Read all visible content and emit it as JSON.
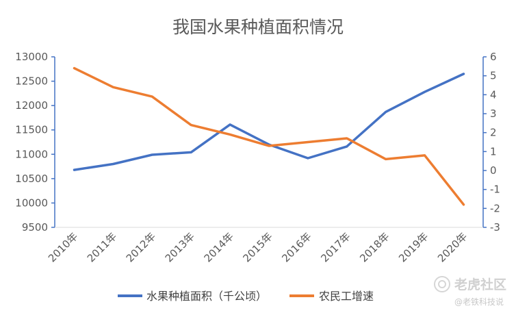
{
  "chart_data": {
    "type": "line",
    "title": "我国水果种植面积情况",
    "categories": [
      "2010年",
      "2011年",
      "2012年",
      "2013年",
      "2014年",
      "2015年",
      "2016年",
      "2017年",
      "2018年",
      "2019年",
      "2020年"
    ],
    "series": [
      {
        "name": "水果种植面积（千公顷）",
        "axis": "left",
        "color": "#4472c4",
        "values": [
          10680,
          10800,
          10990,
          11040,
          11610,
          11200,
          10920,
          11160,
          11870,
          12280,
          12650
        ]
      },
      {
        "name": "农民工增速",
        "axis": "right",
        "color": "#ed7d31",
        "values": [
          5.4,
          4.4,
          3.9,
          2.4,
          1.9,
          1.3,
          1.5,
          1.7,
          0.6,
          0.8,
          -1.8
        ]
      }
    ],
    "y_left": {
      "ylim": [
        9500,
        13000
      ],
      "ticks": [
        "13000",
        "12500",
        "12000",
        "11500",
        "11000",
        "10500",
        "10000",
        "9500"
      ]
    },
    "y_right": {
      "ylim": [
        -3,
        6
      ],
      "ticks": [
        "6",
        "5",
        "4",
        "3",
        "2",
        "1",
        "0",
        "-1",
        "-2",
        "-3"
      ]
    },
    "legend_position": "bottom"
  },
  "watermark": {
    "brand": "老虎社区",
    "handle": "@老铁科技说"
  }
}
